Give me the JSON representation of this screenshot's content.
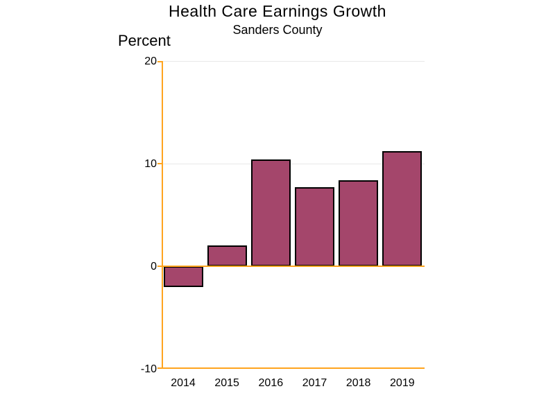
{
  "chart_data": {
    "type": "bar",
    "title": "Health Care Earnings Growth",
    "subtitle": "Sanders County",
    "ylabel": "Percent",
    "xlabel": "",
    "categories": [
      "2014",
      "2015",
      "2016",
      "2017",
      "2018",
      "2019"
    ],
    "values": [
      -2.0,
      2.0,
      10.4,
      7.7,
      8.4,
      11.2
    ],
    "ylim": [
      -10,
      20
    ],
    "yticks": [
      20,
      10,
      0,
      -10
    ],
    "gridline_values": [
      20,
      10
    ],
    "grid": "horizontal",
    "legend": "none",
    "colors": {
      "bar_fill": "#A4466B",
      "bar_outline": "#000000",
      "axis_line": "#FFA41E",
      "gridline": "#E8E8E8",
      "text": "#000000",
      "background": "#FFFFFF"
    }
  }
}
